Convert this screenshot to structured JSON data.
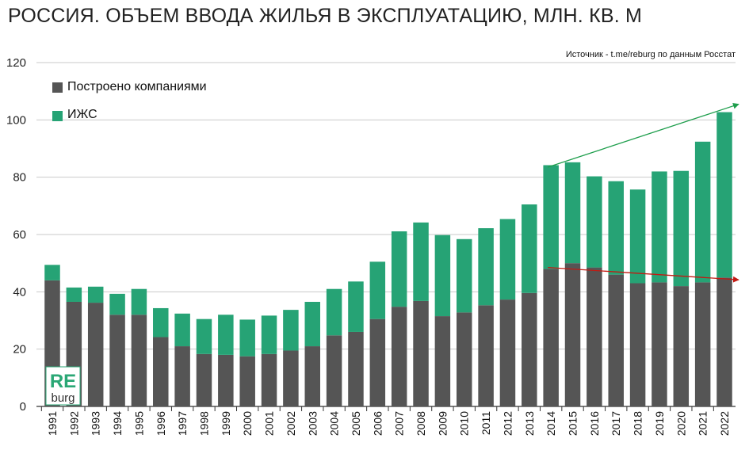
{
  "title": "РОССИЯ. ОБЪЕМ ВВОДА  ЖИЛЬЯ В ЭКСПЛУАТАЦИЮ, МЛН. КВ. М",
  "source": "Источник - t.me/reburg по данным Росстат",
  "logo": {
    "top": "RE",
    "bottom": "burg",
    "color": "#2aa775"
  },
  "colors": {
    "company": "#555555",
    "izhs": "#26a375",
    "trend_up": "#1e9e4c",
    "trend_down": "#c21a12",
    "grid": "#c9c9c9"
  },
  "legend": [
    {
      "label": "Построено компаниями",
      "color": "#555555"
    },
    {
      "label": "ИЖС",
      "color": "#26a375"
    }
  ],
  "chart_data": {
    "type": "bar",
    "stacked": true,
    "title": "РОССИЯ. ОБЪЕМ ВВОДА  ЖИЛЬЯ В ЭКСПЛУАТАЦИЮ, МЛН. КВ. М",
    "xlabel": "",
    "ylabel": "",
    "ylim": [
      0,
      120
    ],
    "yticks": [
      0,
      20,
      40,
      60,
      80,
      100,
      120
    ],
    "grid": true,
    "legend_position": "top-left",
    "categories": [
      "1991",
      "1992",
      "1993",
      "1994",
      "1995",
      "1996",
      "1997",
      "1998",
      "1999",
      "2000",
      "2001",
      "2002",
      "2003",
      "2004",
      "2005",
      "2006",
      "2007",
      "2008",
      "2009",
      "2010",
      "2011",
      "2012",
      "2013",
      "2014",
      "2015",
      "2016",
      "2017",
      "2018",
      "2019",
      "2020",
      "2021",
      "2022"
    ],
    "series": [
      {
        "name": "Построено компаниями",
        "values": [
          44.0,
          36.5,
          36.2,
          32.0,
          32.0,
          24.2,
          21.0,
          18.3,
          18.0,
          17.5,
          18.3,
          19.5,
          21.0,
          24.8,
          26.0,
          30.5,
          34.8,
          36.8,
          31.5,
          32.8,
          35.3,
          37.3,
          39.6,
          48.0,
          50.0,
          48.5,
          46.0,
          43.0,
          43.3,
          42.0,
          43.3,
          45.0
        ]
      },
      {
        "name": "ИЖС",
        "values": [
          5.4,
          5.0,
          5.6,
          7.3,
          9.0,
          10.1,
          11.4,
          12.2,
          14.0,
          12.8,
          13.4,
          14.2,
          15.5,
          16.2,
          17.6,
          20.0,
          26.3,
          27.4,
          28.3,
          25.6,
          26.9,
          28.1,
          30.9,
          36.2,
          35.2,
          31.8,
          32.6,
          32.7,
          38.7,
          40.2,
          49.1,
          57.7
        ]
      }
    ],
    "trend_lines": [
      {
        "series": "total",
        "from": [
          "2014",
          83.5
        ],
        "to": [
          "2022",
          105.5
        ],
        "color": "#1e9e4c"
      },
      {
        "series": "Построено компаниями",
        "from": [
          "2014",
          48.5
        ],
        "to": [
          "2022",
          44.2
        ],
        "color": "#c21a12"
      }
    ]
  }
}
